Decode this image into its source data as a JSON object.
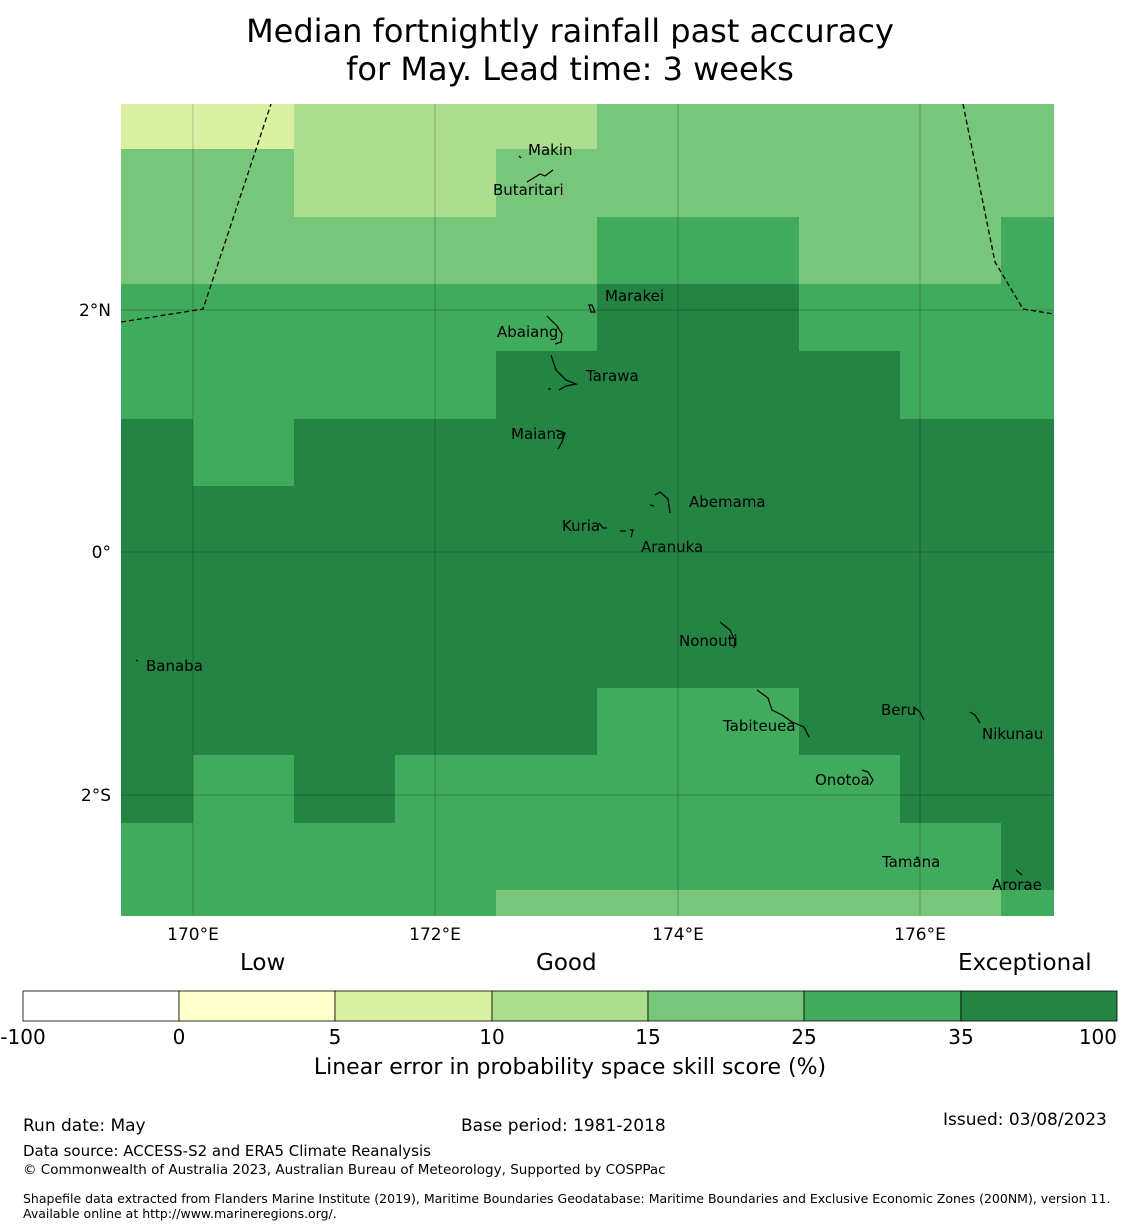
{
  "title_line1": "Median fortnightly rainfall past accuracy",
  "title_line2": "for May. Lead time: 3 weeks",
  "map": {
    "lon_range": [
      169.4,
      177.1
    ],
    "lat_range": [
      -2.9,
      3.5
    ],
    "x_ticks": [
      "170°E",
      "172°E",
      "174°E",
      "176°E"
    ],
    "y_ticks": [
      "2°N",
      "0°",
      "2°S"
    ],
    "gridlines": true
  },
  "islands": [
    "Makin",
    "Butaritari",
    "Marakei",
    "Abaiang",
    "Tarawa",
    "Maiana",
    "Abemama",
    "Kuria",
    "Aranuka",
    "Nonouti",
    "Banaba",
    "Beru",
    "Tabiteuea",
    "Nikunau",
    "Onotoa",
    "Tamana",
    "Arorae"
  ],
  "categories": {
    "low": "Low",
    "good": "Good",
    "exceptional": "Exceptional"
  },
  "colorbar": {
    "ticks": [
      "-100",
      "0",
      "5",
      "10",
      "15",
      "25",
      "35",
      "100"
    ],
    "colors": [
      "#ffffff",
      "#ffffcc",
      "#d9f0a3",
      "#addd8e",
      "#78c679",
      "#41ab5d",
      "#238443"
    ],
    "label": "Linear error in probability space skill score (%)"
  },
  "footer": {
    "run_date": "Run date: May",
    "base_period": "Base period: 1981-2018",
    "issued": "Issued: 03/08/2023",
    "data_source": "Data source: ACCESS-S2 and ERA5 Climate Reanalysis",
    "copyright": "© Commonwealth of Australia 2023, Australian Bureau of Meteorology, Supported by COSPPac",
    "shapefile": "Shapefile data extracted from Flanders Marine Institute (2019), Maritime Boundaries Geodatabase: Maritime Boundaries and Exclusive Economic Zones (200NM), version 11. Available online at http://www.marineregions.org/."
  }
}
